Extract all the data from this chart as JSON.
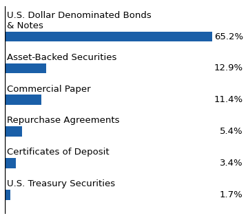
{
  "categories": [
    "U.S. Treasury Securities",
    "Certificates of Deposit",
    "Repurchase Agreements",
    "Commercial Paper",
    "Asset-Backed Securities",
    "U.S. Dollar Denominated Bonds\n& Notes"
  ],
  "values": [
    1.7,
    3.4,
    5.4,
    11.4,
    12.9,
    65.2
  ],
  "labels": [
    "1.7%",
    "3.4%",
    "5.4%",
    "11.4%",
    "12.9%",
    "65.2%"
  ],
  "bar_color": "#1a5fa8",
  "background_color": "#ffffff",
  "text_color": "#000000",
  "bar_height": 0.32,
  "label_fontsize": 9.5,
  "category_fontsize": 9.5,
  "xlim": [
    0,
    75
  ],
  "figsize": [
    3.6,
    3.16
  ],
  "dpi": 100
}
